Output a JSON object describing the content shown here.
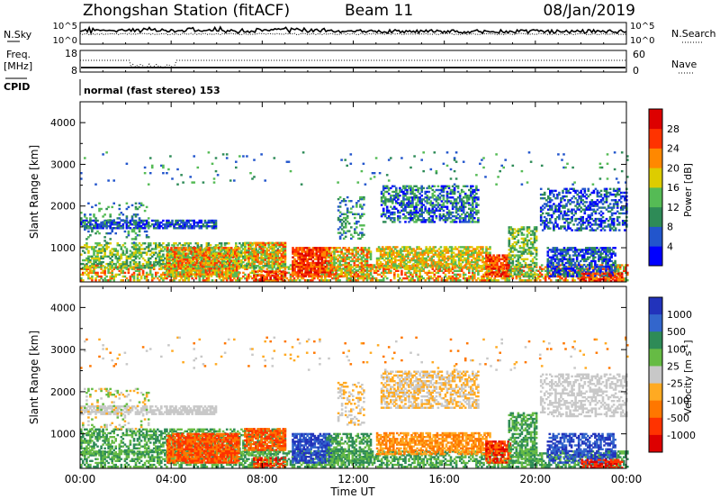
{
  "header": {
    "station": "Zhongshan Station (fitACF)",
    "beam": "Beam 11",
    "date": "08/Jan/2019"
  },
  "noise_panel": {
    "left_label": "N.Sky",
    "right_label": "N.Search",
    "left_ticks": [
      "10^5",
      "10^0"
    ],
    "right_ticks": [
      "10^5",
      "10^0"
    ]
  },
  "freq_panel": {
    "left_label_line1": "Freq.",
    "left_label_line2": "[MHz]",
    "left_ticks": [
      "18",
      "8"
    ],
    "right_ticks": [
      "60",
      "0"
    ],
    "right_label": "Nave"
  },
  "cpid": {
    "label": "CPID",
    "value": "normal (fast stereo) 153"
  },
  "chart_data": [
    {
      "type": "heatmap",
      "title": "",
      "ylabel": "Slant Range [km]",
      "xlabel": "",
      "ylim": [
        180,
        4500
      ],
      "y_ticks": [
        "1000",
        "2000",
        "3000",
        "4000"
      ],
      "colorbar": {
        "label": "Power [dB]",
        "ticks": [
          "4",
          "8",
          "12",
          "16",
          "20",
          "24",
          "28"
        ],
        "colors": [
          "#0000ff",
          "#2255cc",
          "#2e8b57",
          "#55bb55",
          "#ddcc00",
          "#ff8800",
          "#ff3300",
          "#dd0000"
        ]
      }
    },
    {
      "type": "heatmap",
      "title": "",
      "ylabel": "Slant Range [km]",
      "xlabel": "Time UT",
      "ylim": [
        180,
        4500
      ],
      "y_ticks": [
        "1000",
        "2000",
        "3000",
        "4000"
      ],
      "x_ticks": [
        "00:00",
        "04:00",
        "08:00",
        "12:00",
        "16:00",
        "20:00",
        "00:00"
      ],
      "colorbar": {
        "label": "Velocity [m s-1]",
        "ticks": [
          "1000",
          "500",
          "100",
          "25",
          "-25",
          "-100",
          "-500",
          "-1000"
        ],
        "colors": [
          "#2233bb",
          "#3366cc",
          "#2e8b57",
          "#66bb44",
          "#c8c8c8",
          "#ffaa22",
          "#ff7700",
          "#ff3300",
          "#dd0000"
        ]
      }
    }
  ]
}
